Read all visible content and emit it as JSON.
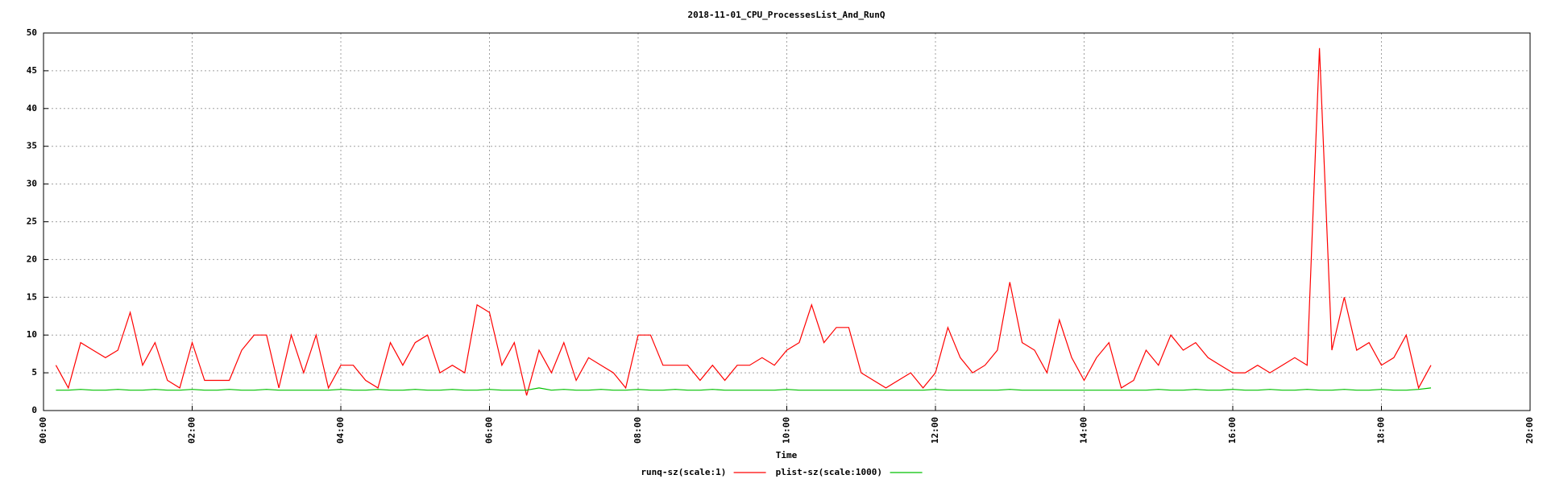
{
  "chart_data": {
    "type": "line",
    "title": "2018-11-01_CPU_ProcessesList_And_RunQ",
    "x_label": "Time",
    "x": [
      "00:10",
      "00:20",
      "00:30",
      "00:40",
      "00:50",
      "01:00",
      "01:10",
      "01:20",
      "01:30",
      "01:40",
      "01:50",
      "02:00",
      "02:10",
      "02:20",
      "02:30",
      "02:40",
      "02:50",
      "03:00",
      "03:10",
      "03:20",
      "03:30",
      "03:40",
      "03:50",
      "04:00",
      "04:10",
      "04:20",
      "04:30",
      "04:40",
      "04:50",
      "05:00",
      "05:10",
      "05:20",
      "05:30",
      "05:40",
      "05:50",
      "06:00",
      "06:10",
      "06:20",
      "06:30",
      "06:40",
      "06:50",
      "07:00",
      "07:10",
      "07:20",
      "07:30",
      "07:40",
      "07:50",
      "08:00",
      "08:10",
      "08:20",
      "08:30",
      "08:40",
      "08:50",
      "09:00",
      "09:10",
      "09:20",
      "09:30",
      "09:40",
      "09:50",
      "10:00",
      "10:10",
      "10:20",
      "10:30",
      "10:40",
      "10:50",
      "11:00",
      "11:10",
      "11:20",
      "11:30",
      "11:40",
      "11:50",
      "12:00",
      "12:10",
      "12:20",
      "12:30",
      "12:40",
      "12:50",
      "13:00",
      "13:10",
      "13:20",
      "13:30",
      "13:40",
      "13:50",
      "14:00",
      "14:10",
      "14:20",
      "14:30",
      "14:40",
      "14:50",
      "15:00",
      "15:10",
      "15:20",
      "15:30",
      "15:40",
      "15:50",
      "16:00",
      "16:10",
      "16:20",
      "16:30",
      "16:40",
      "16:50",
      "17:00",
      "17:10",
      "17:20",
      "17:30",
      "17:40",
      "17:50",
      "18:00",
      "18:10",
      "18:20",
      "18:30",
      "18:40"
    ],
    "series": [
      {
        "name": "runq-sz(scale:1)",
        "color": "#ff0000",
        "values": [
          6,
          3,
          9,
          8,
          7,
          8,
          13,
          6,
          9,
          4,
          3,
          9,
          4,
          4,
          4,
          8,
          10,
          10,
          3,
          10,
          5,
          10,
          3,
          6,
          6,
          4,
          3,
          9,
          6,
          9,
          10,
          5,
          6,
          5,
          14,
          13,
          6,
          9,
          2,
          8,
          5,
          9,
          4,
          7,
          6,
          5,
          3,
          10,
          10,
          6,
          6,
          6,
          4,
          6,
          4,
          6,
          6,
          7,
          6,
          8,
          9,
          14,
          9,
          11,
          11,
          5,
          4,
          3,
          4,
          5,
          3,
          5,
          11,
          7,
          5,
          6,
          8,
          17,
          9,
          8,
          5,
          12,
          7,
          4,
          7,
          9,
          3,
          4,
          8,
          6,
          10,
          8,
          9,
          7,
          6,
          5,
          5,
          6,
          5,
          6,
          7,
          6,
          48,
          8,
          15,
          8,
          9,
          6,
          7,
          10,
          3,
          6
        ]
      },
      {
        "name": "plist-sz(scale:1000)",
        "color": "#00c000",
        "values": [
          2.7,
          2.7,
          2.8,
          2.7,
          2.7,
          2.8,
          2.7,
          2.7,
          2.8,
          2.7,
          2.7,
          2.8,
          2.7,
          2.7,
          2.8,
          2.7,
          2.7,
          2.8,
          2.7,
          2.7,
          2.7,
          2.7,
          2.7,
          2.8,
          2.7,
          2.7,
          2.8,
          2.7,
          2.7,
          2.8,
          2.7,
          2.7,
          2.8,
          2.7,
          2.7,
          2.8,
          2.7,
          2.7,
          2.7,
          3.0,
          2.7,
          2.8,
          2.7,
          2.7,
          2.8,
          2.7,
          2.7,
          2.8,
          2.7,
          2.7,
          2.8,
          2.7,
          2.7,
          2.8,
          2.7,
          2.7,
          2.7,
          2.7,
          2.7,
          2.8,
          2.7,
          2.7,
          2.7,
          2.7,
          2.7,
          2.7,
          2.7,
          2.7,
          2.7,
          2.7,
          2.7,
          2.8,
          2.7,
          2.7,
          2.7,
          2.7,
          2.7,
          2.8,
          2.7,
          2.7,
          2.7,
          2.7,
          2.7,
          2.7,
          2.7,
          2.7,
          2.7,
          2.7,
          2.7,
          2.8,
          2.7,
          2.7,
          2.8,
          2.7,
          2.7,
          2.8,
          2.7,
          2.7,
          2.8,
          2.7,
          2.7,
          2.8,
          2.7,
          2.7,
          2.8,
          2.7,
          2.7,
          2.8,
          2.7,
          2.7,
          2.8,
          3.0
        ]
      }
    ],
    "xlim": [
      "00:00",
      "20:00"
    ],
    "xticks": [
      "00:00",
      "02:00",
      "04:00",
      "06:00",
      "08:00",
      "10:00",
      "12:00",
      "14:00",
      "16:00",
      "18:00",
      "20:00"
    ],
    "ylim": [
      0,
      50
    ],
    "yticks": [
      0,
      5,
      10,
      15,
      20,
      25,
      30,
      35,
      40,
      45,
      50
    ],
    "grid": true,
    "legend": "bottom"
  }
}
